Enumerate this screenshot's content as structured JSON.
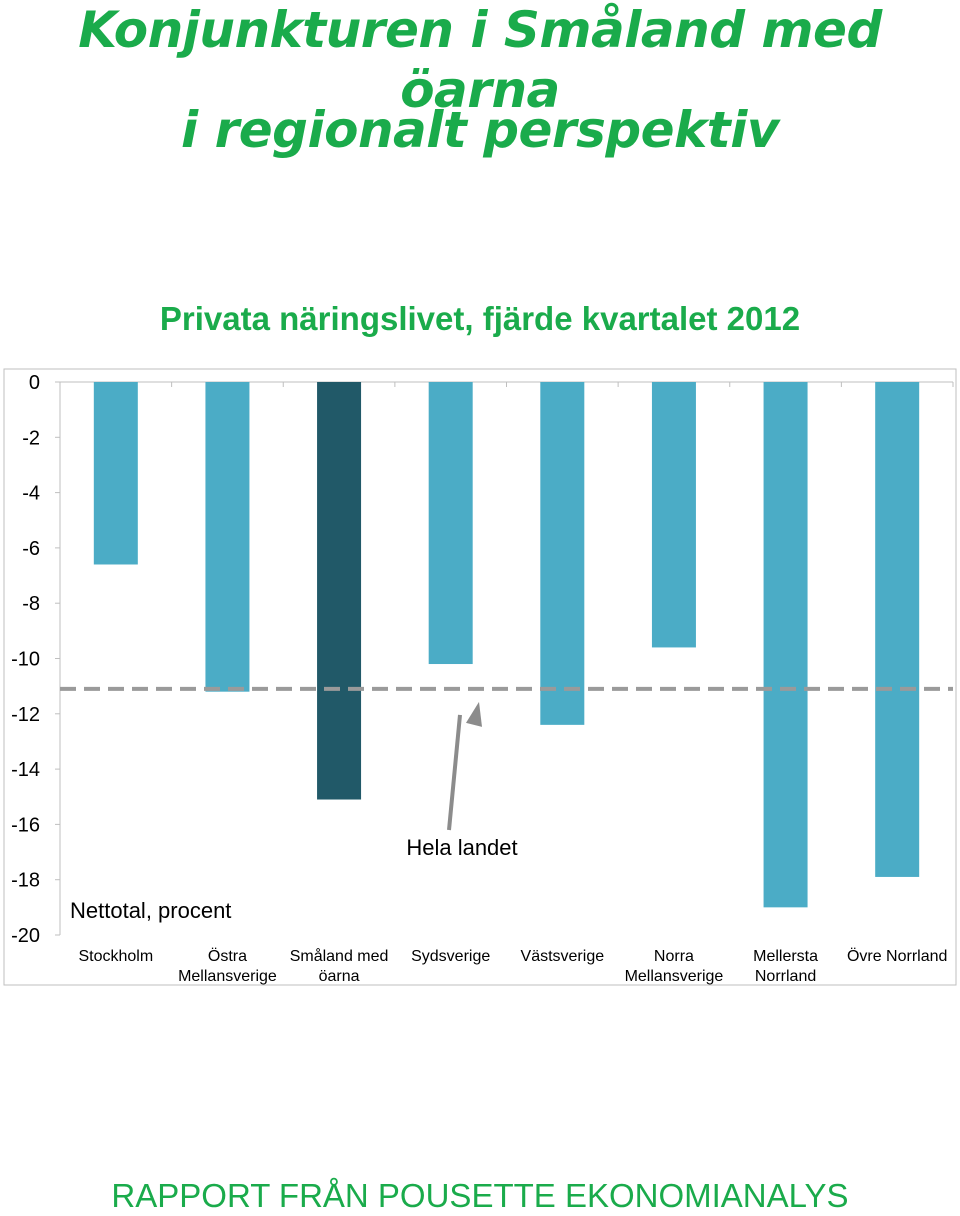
{
  "header": {
    "title_line1": "Konjunkturen i Småland med öarna",
    "title_line2": "i regionalt perspektiv",
    "subtitle": "Privata näringslivet, fjärde kvartalet 2012"
  },
  "footer": {
    "text": "RAPPORT FRÅN POUSETTE EKONOMIANALYS"
  },
  "chart_data": {
    "type": "bar",
    "title": "Privata näringslivet, fjärde kvartalet 2012",
    "ylabel": "Nettotal, procent",
    "xlabel": "",
    "ylim": [
      -20,
      0
    ],
    "yticks": [
      0,
      -2,
      -4,
      -6,
      -8,
      -10,
      -12,
      -14,
      -16,
      -18,
      -20
    ],
    "grid": false,
    "categories": [
      [
        "Stockholm"
      ],
      [
        "Östra",
        "Mellansverige"
      ],
      [
        "Småland med",
        "öarna"
      ],
      [
        "Sydsverige"
      ],
      [
        "Västsverige"
      ],
      [
        "Norra",
        "Mellansverige"
      ],
      [
        "Mellersta",
        "Norrland"
      ],
      [
        "Övre Norrland"
      ]
    ],
    "values": [
      -6.6,
      -11.2,
      -15.1,
      -10.2,
      -12.4,
      -9.6,
      -19.0,
      -17.9
    ],
    "highlight_index": 2,
    "reference_line": {
      "label": "Hela landet",
      "value": -11.1
    },
    "colors": {
      "bar": "#4bacc6",
      "highlight": "#215968",
      "reference": "#9a9a9a",
      "arrow": "#8c8c8c",
      "axis": "#bfbfbf"
    }
  }
}
